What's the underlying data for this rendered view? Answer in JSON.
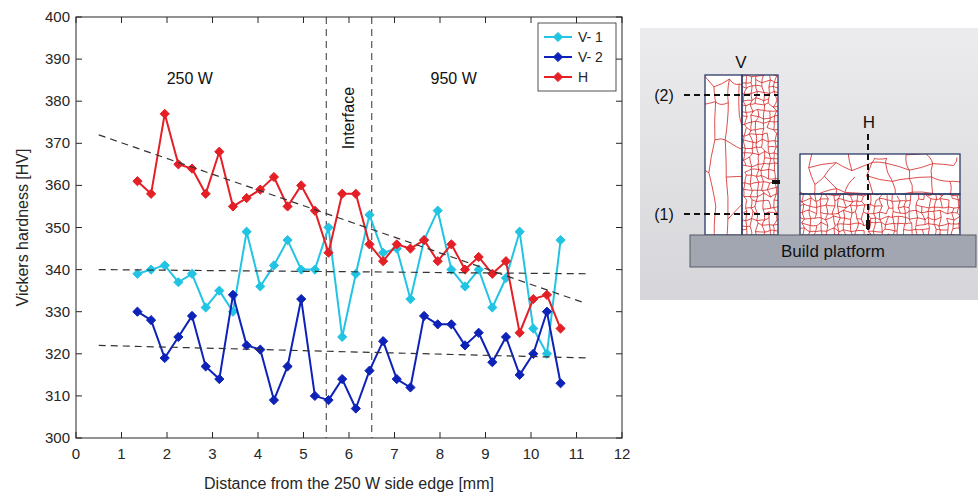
{
  "chart_data": {
    "type": "line",
    "x_label": "Distance from the 250 W side edge [mm]",
    "y_label": "Vickers hardness [HV]",
    "x": [
      1.35,
      1.65,
      1.95,
      2.25,
      2.55,
      2.85,
      3.15,
      3.45,
      3.75,
      4.05,
      4.35,
      4.65,
      4.95,
      5.25,
      5.55,
      5.85,
      6.15,
      6.45,
      6.75,
      7.05,
      7.35,
      7.65,
      7.95,
      8.25,
      8.55,
      8.85,
      9.15,
      9.45,
      9.75,
      10.05,
      10.35,
      10.65
    ],
    "series": [
      {
        "name": "V- 1",
        "color": "#22c4e4",
        "marker": "diamond",
        "line_style": "solid",
        "values": [
          339,
          340,
          341,
          337,
          339,
          331,
          335,
          330,
          349,
          336,
          341,
          347,
          340,
          340,
          350,
          324,
          339,
          353,
          344,
          345,
          333,
          347,
          354,
          340,
          336,
          340,
          331,
          338,
          349,
          326,
          320,
          347
        ]
      },
      {
        "name": "V- 2",
        "color": "#0d22b8",
        "marker": "diamond",
        "line_style": "solid",
        "values": [
          330,
          328,
          319,
          324,
          329,
          317,
          314,
          334,
          322,
          321,
          309,
          317,
          333,
          310,
          309,
          314,
          307,
          316,
          323,
          314,
          312,
          329,
          327,
          327,
          322,
          325,
          318,
          324,
          315,
          320,
          330,
          313
        ]
      },
      {
        "name": "H",
        "color": "#e41f26",
        "marker": "diamond",
        "line_style": "solid",
        "values": [
          361,
          358,
          377,
          365,
          364,
          358,
          368,
          355,
          357,
          359,
          362,
          355,
          360,
          354,
          344,
          358,
          358,
          346,
          342,
          346,
          345,
          347,
          342,
          346,
          340,
          343,
          339,
          342,
          325,
          333,
          334,
          326
        ]
      }
    ],
    "trend_lines": [
      {
        "x": [
          0.5,
          11.2
        ],
        "values": [
          372,
          332
        ],
        "color": "#333333",
        "line_style": "dashed"
      },
      {
        "x": [
          0.5,
          11.3
        ],
        "values": [
          340,
          339
        ],
        "color": "#333333",
        "line_style": "dashed"
      },
      {
        "x": [
          0.5,
          11.3
        ],
        "values": [
          322,
          319
        ],
        "color": "#333333",
        "line_style": "dashed"
      }
    ],
    "vlines": [
      5.5,
      6.5
    ],
    "annotations": [
      {
        "text": "250 W",
        "x": 2.5,
        "y": 384
      },
      {
        "text": "Interface",
        "x": 6.0,
        "y": 376
      },
      {
        "text": "950 W",
        "x": 8.3,
        "y": 384
      }
    ],
    "xlim": [
      0,
      12
    ],
    "xticks": [
      0,
      1,
      2,
      3,
      4,
      5,
      6,
      7,
      8,
      9,
      10,
      11,
      12
    ],
    "ylim": [
      300,
      400
    ],
    "yticks": [
      300,
      310,
      320,
      330,
      340,
      350,
      360,
      370,
      380,
      390,
      400
    ],
    "grid": false,
    "legend": "upper right"
  },
  "diagram": {
    "sample_labels": [
      "V",
      "H"
    ],
    "line_labels": [
      "(2)",
      "(1)"
    ],
    "platform": "Build platform"
  }
}
